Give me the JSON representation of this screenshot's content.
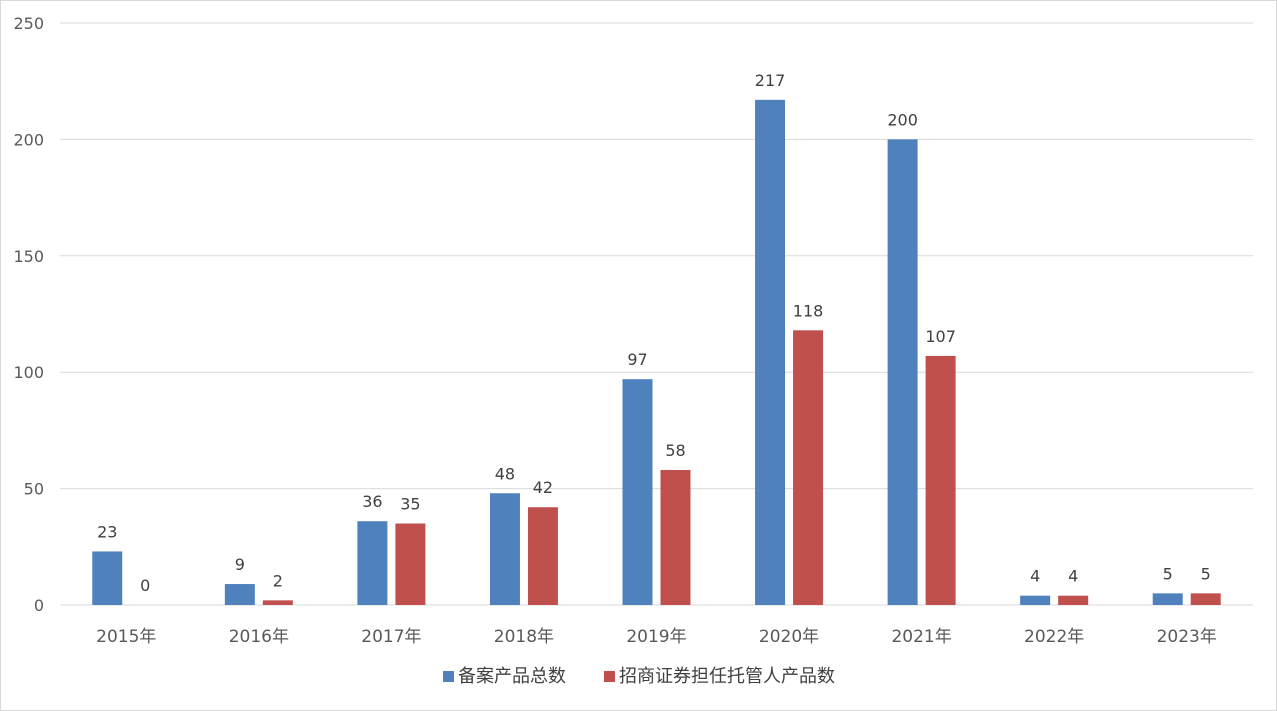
{
  "chart_data": {
    "type": "bar",
    "categories": [
      "2015年",
      "2016年",
      "2017年",
      "2018年",
      "2019年",
      "2020年",
      "2021年",
      "2022年",
      "2023年"
    ],
    "series": [
      {
        "name": "备案产品总数",
        "values": [
          23,
          9,
          36,
          48,
          97,
          217,
          200,
          4,
          5
        ],
        "color": "#4f81bd"
      },
      {
        "name": "招商证券担任托管人产品数",
        "values": [
          0,
          2,
          35,
          42,
          58,
          118,
          107,
          4,
          5
        ],
        "color": "#c0504d"
      }
    ],
    "ylim": [
      0,
      250
    ],
    "yticks": [
      0,
      50,
      100,
      150,
      200,
      250
    ],
    "grid": true,
    "gridColor": "#d9d9d9",
    "legend": "bottom",
    "data_labels": true,
    "title": "",
    "xlabel": "",
    "ylabel": ""
  }
}
